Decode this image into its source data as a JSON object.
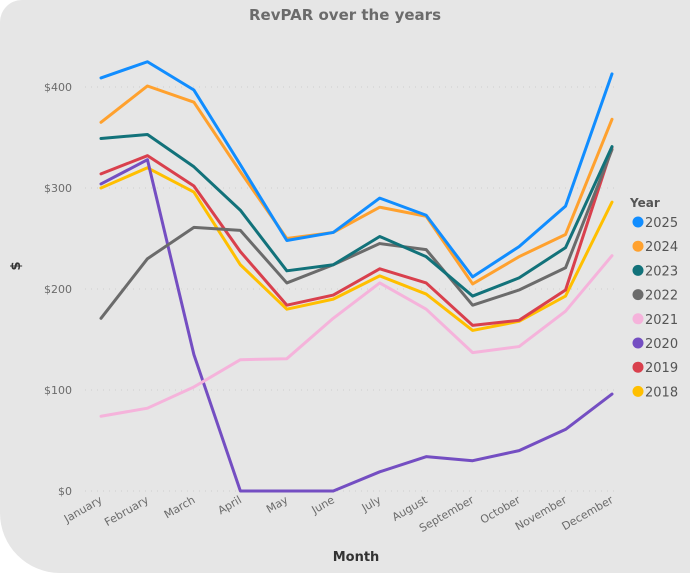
{
  "chart_data": {
    "type": "line",
    "title": "RevPAR over the years",
    "xlabel": "Month",
    "ylabel": "$",
    "ylim": [
      0,
      440
    ],
    "y_ticks": [
      {
        "value": 0,
        "label": "$0"
      },
      {
        "value": 100,
        "label": "$100"
      },
      {
        "value": 200,
        "label": "$200"
      },
      {
        "value": 300,
        "label": "$300"
      },
      {
        "value": 400,
        "label": "$400"
      }
    ],
    "grid": "horizontal-dotted",
    "legend": {
      "title": "Year",
      "position": "right"
    },
    "categories": [
      "January",
      "February",
      "March",
      "April",
      "May",
      "June",
      "July",
      "August",
      "September",
      "October",
      "November",
      "December"
    ],
    "series": [
      {
        "name": "2025",
        "color": "#118DFF",
        "values": [
          409,
          425,
          397,
          323,
          248,
          256,
          290,
          273,
          212,
          242,
          282,
          413
        ]
      },
      {
        "name": "2024",
        "color": "#FFA12E",
        "values": [
          365,
          401,
          385,
          316,
          250,
          256,
          281,
          272,
          205,
          232,
          254,
          368
        ]
      },
      {
        "name": "2023",
        "color": "#12727A",
        "values": [
          349,
          353,
          321,
          278,
          218,
          224,
          252,
          232,
          193,
          211,
          241,
          341
        ]
      },
      {
        "name": "2022",
        "color": "#6B6B6B",
        "values": [
          171,
          230,
          261,
          258,
          206,
          224,
          245,
          239,
          184,
          199,
          221,
          338
        ]
      },
      {
        "name": "2021",
        "color": "#F5B3DB",
        "values": [
          74,
          82,
          103,
          130,
          131,
          171,
          206,
          180,
          137,
          143,
          178,
          233
        ]
      },
      {
        "name": "2020",
        "color": "#744EC2",
        "values": [
          304,
          328,
          135,
          0,
          0,
          0,
          19,
          34,
          30,
          40,
          61,
          96
        ]
      },
      {
        "name": "2019",
        "color": "#D9404D",
        "values": [
          314,
          332,
          302,
          237,
          184,
          194,
          220,
          206,
          164,
          169,
          199,
          340
        ]
      },
      {
        "name": "2018",
        "color": "#FFBF00",
        "values": [
          300,
          320,
          296,
          224,
          180,
          190,
          213,
          195,
          159,
          168,
          193,
          286
        ]
      }
    ]
  }
}
